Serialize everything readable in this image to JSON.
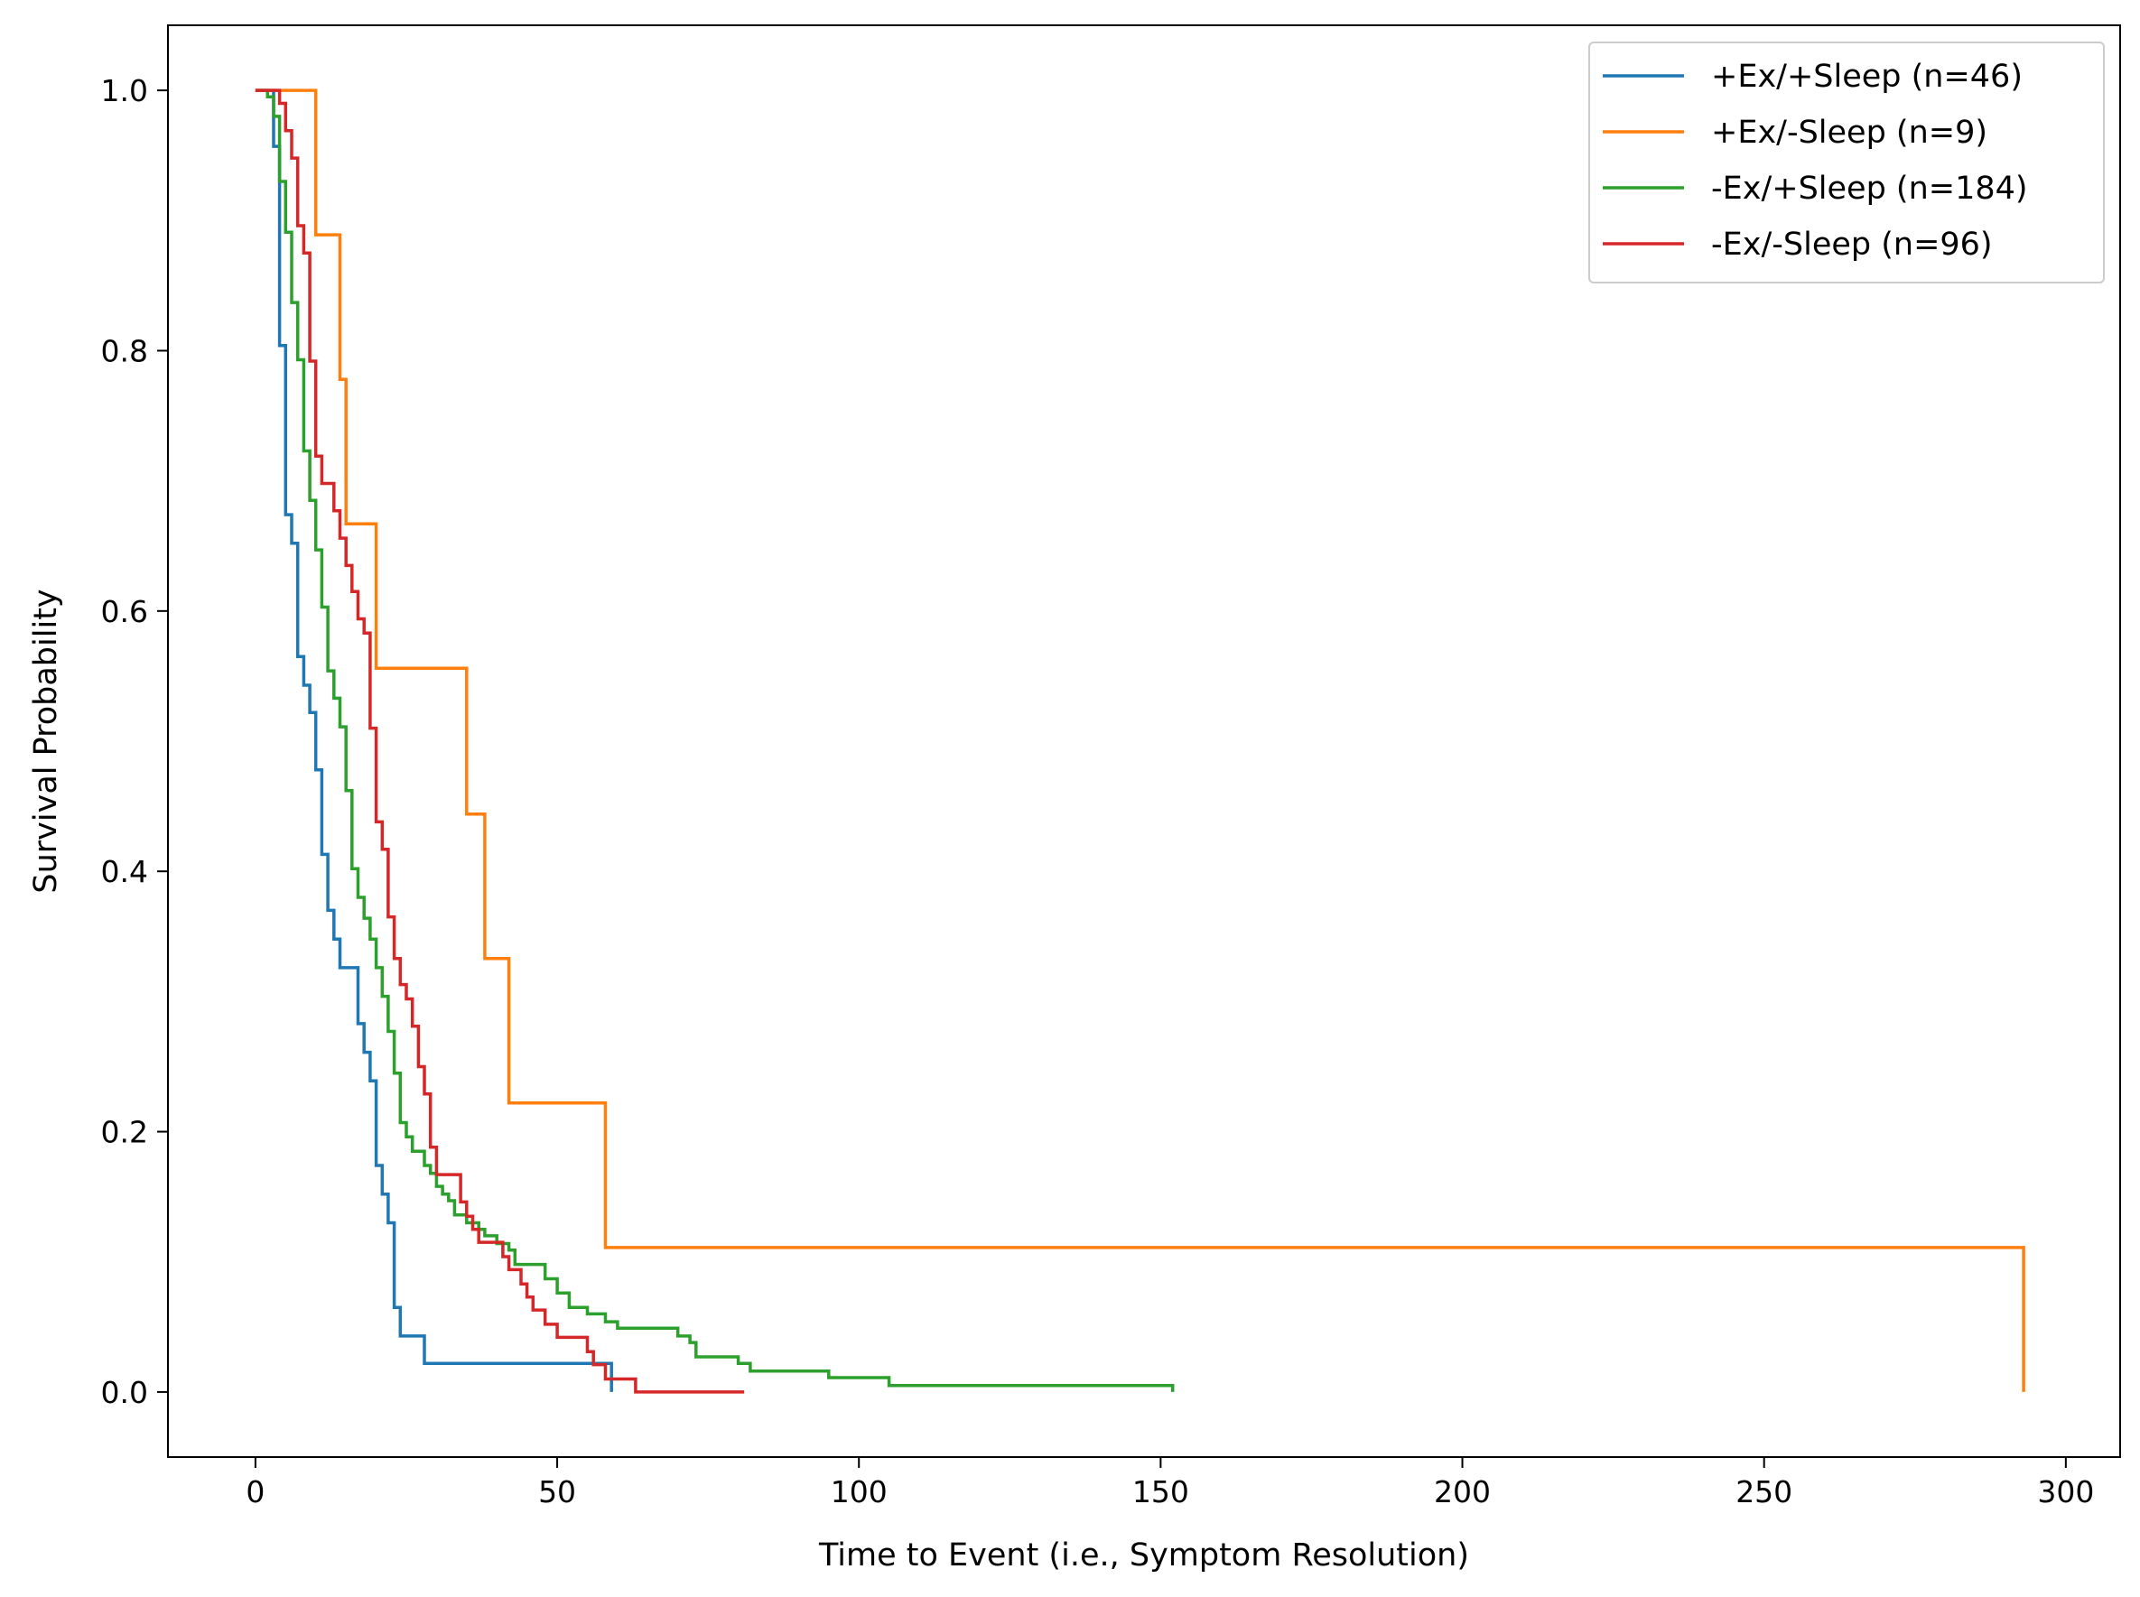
{
  "chart_data": {
    "type": "line",
    "step": "post",
    "title": "",
    "xlabel": "Time to Event (i.e., Symptom Resolution)",
    "ylabel": "Survival Probability",
    "xlim": [
      -14.5,
      309
    ],
    "ylim": [
      -0.05,
      1.05
    ],
    "xticks": [
      0,
      50,
      100,
      150,
      200,
      250,
      300
    ],
    "yticks": [
      0.0,
      0.2,
      0.4,
      0.6,
      0.8,
      1.0
    ],
    "ytick_labels": [
      "0.0",
      "0.2",
      "0.4",
      "0.6",
      "0.8",
      "1.0"
    ],
    "grid": false,
    "legend_position": "top-right",
    "series": [
      {
        "name": "+Ex/+Sleep (n=46)",
        "color": "#1f77b4",
        "x": [
          0,
          3,
          4,
          5,
          6,
          7,
          8,
          9,
          10,
          11,
          12,
          13,
          14,
          17,
          18,
          19,
          20,
          21,
          22,
          23,
          24,
          28,
          32,
          59
        ],
        "y": [
          1.0,
          0.957,
          0.804,
          0.674,
          0.652,
          0.565,
          0.543,
          0.522,
          0.478,
          0.413,
          0.37,
          0.348,
          0.326,
          0.283,
          0.261,
          0.239,
          0.174,
          0.152,
          0.13,
          0.065,
          0.043,
          0.022,
          0.022,
          0.0
        ]
      },
      {
        "name": "+Ex/-Sleep (n=9)",
        "color": "#ff7f0e",
        "x": [
          0,
          10,
          14,
          15,
          20,
          35,
          38,
          42,
          58,
          293
        ],
        "y": [
          1.0,
          0.889,
          0.778,
          0.667,
          0.556,
          0.444,
          0.333,
          0.222,
          0.111,
          0.0
        ]
      },
      {
        "name": "-Ex/+Sleep (n=184)",
        "color": "#2ca02c",
        "x": [
          0,
          2,
          3,
          4,
          5,
          6,
          7,
          8,
          9,
          10,
          11,
          12,
          13,
          14,
          15,
          16,
          17,
          18,
          19,
          20,
          21,
          22,
          23,
          24,
          25,
          26,
          28,
          29,
          30,
          31,
          32,
          33,
          35,
          37,
          38,
          40,
          42,
          43,
          48,
          50,
          52,
          55,
          58,
          60,
          70,
          72,
          73,
          80,
          82,
          95,
          105,
          152
        ],
        "y": [
          1.0,
          0.995,
          0.98,
          0.93,
          0.891,
          0.837,
          0.793,
          0.723,
          0.685,
          0.647,
          0.603,
          0.554,
          0.533,
          0.511,
          0.462,
          0.402,
          0.38,
          0.364,
          0.348,
          0.326,
          0.304,
          0.277,
          0.245,
          0.207,
          0.196,
          0.185,
          0.174,
          0.168,
          0.158,
          0.152,
          0.147,
          0.136,
          0.13,
          0.125,
          0.12,
          0.114,
          0.109,
          0.098,
          0.087,
          0.076,
          0.065,
          0.06,
          0.054,
          0.049,
          0.043,
          0.038,
          0.027,
          0.022,
          0.016,
          0.011,
          0.005,
          0.0
        ]
      },
      {
        "name": "-Ex/-Sleep (n=96)",
        "color": "#d62728",
        "x": [
          0,
          4,
          5,
          6,
          7,
          8,
          9,
          10,
          11,
          13,
          14,
          15,
          16,
          17,
          18,
          19,
          20,
          21,
          22,
          23,
          24,
          25,
          26,
          27,
          28,
          29,
          30,
          34,
          35,
          36,
          37,
          41,
          42,
          44,
          45,
          46,
          48,
          50,
          55,
          56,
          58,
          63,
          67,
          81
        ],
        "y": [
          1.0,
          0.99,
          0.969,
          0.948,
          0.896,
          0.875,
          0.792,
          0.719,
          0.698,
          0.677,
          0.656,
          0.635,
          0.615,
          0.594,
          0.583,
          0.51,
          0.438,
          0.417,
          0.365,
          0.333,
          0.313,
          0.302,
          0.281,
          0.25,
          0.229,
          0.188,
          0.167,
          0.146,
          0.135,
          0.125,
          0.115,
          0.104,
          0.094,
          0.083,
          0.073,
          0.063,
          0.052,
          0.042,
          0.031,
          0.021,
          0.01,
          0.0,
          0.0,
          0.0
        ]
      }
    ]
  }
}
